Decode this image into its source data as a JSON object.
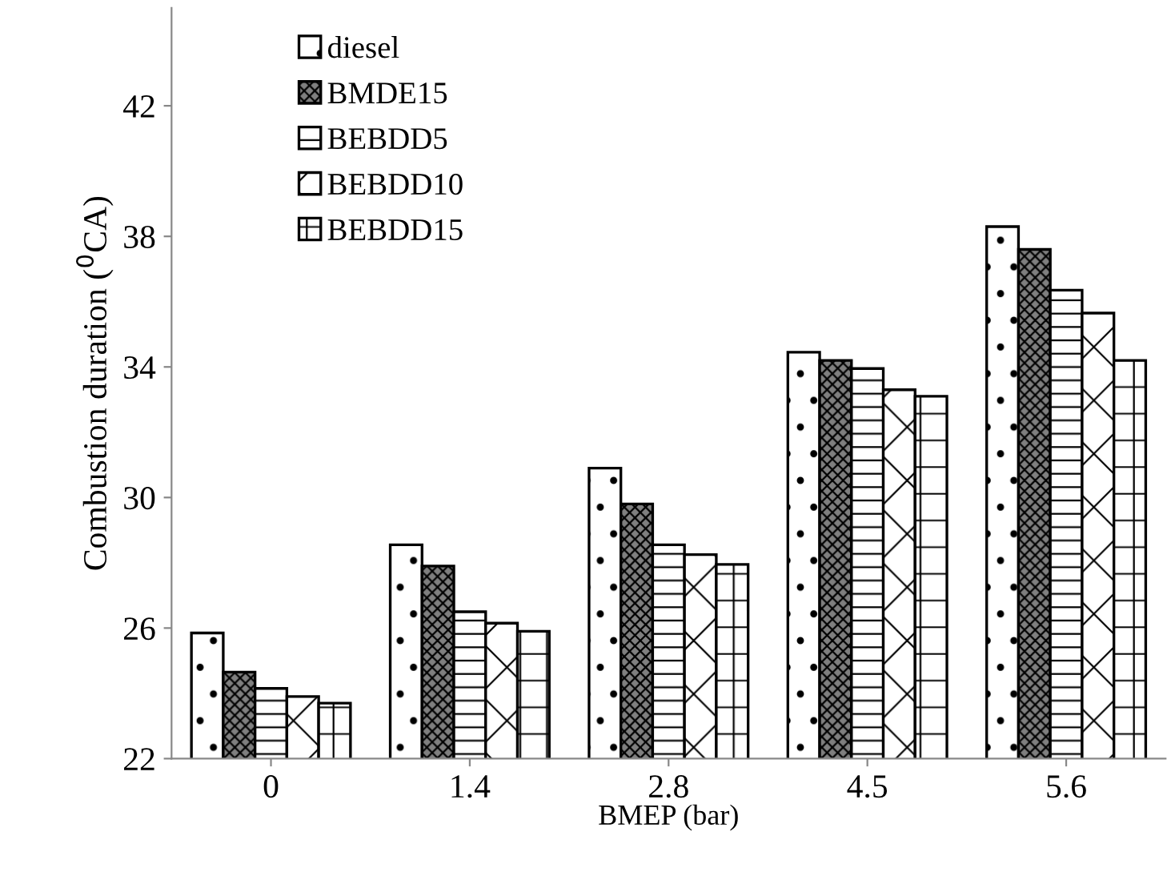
{
  "chart_data": {
    "type": "bar",
    "xlabel": "BMEP (bar)",
    "ylabel": "Combustion duration ($^{0}$CA)",
    "categories": [
      "0",
      "1.4",
      "2.8",
      "4.5",
      "5.6"
    ],
    "series": [
      {
        "name": "diesel",
        "color": "#ffffff",
        "values": [
          25.85,
          28.55,
          30.9,
          34.45,
          38.3
        ]
      },
      {
        "name": "BMDE15",
        "color": "#7f7f7f",
        "values": [
          24.65,
          27.9,
          29.8,
          34.2,
          37.6
        ]
      },
      {
        "name": "BEBDD5",
        "color": "#ffffff",
        "values": [
          24.15,
          26.5,
          28.55,
          33.95,
          36.35
        ]
      },
      {
        "name": "BEBDD10",
        "color": "#ffffff",
        "values": [
          23.9,
          26.15,
          28.25,
          33.3,
          35.65
        ]
      },
      {
        "name": "BEBDD15",
        "color": "#ffffff",
        "values": [
          23.7,
          25.9,
          27.95,
          33.1,
          34.2
        ]
      }
    ],
    "ylim": [
      22,
      45
    ],
    "yticks": [
      22,
      26,
      30,
      34,
      38,
      42
    ],
    "grid": false,
    "legend": "top left"
  }
}
